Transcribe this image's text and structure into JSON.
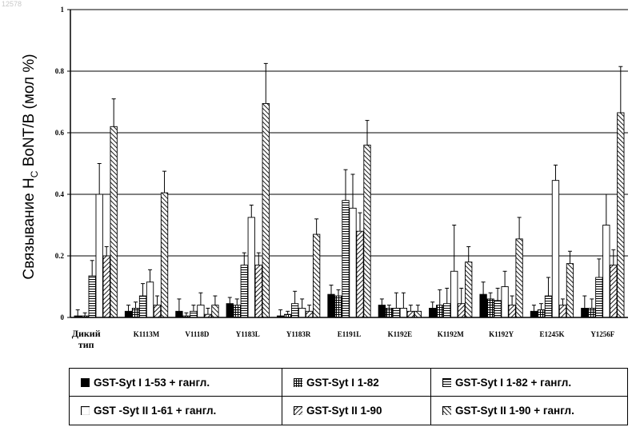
{
  "page": {
    "corner_label": "12578"
  },
  "chart_data": {
    "type": "bar",
    "title": "",
    "ylabel": "Связывание Hᴄ BoNT/B (мол %)",
    "ylabel_main": "Связывание H",
    "ylabel_sub": "C",
    "ylabel_rest": " BoNT/B (мол %)",
    "ylim": [
      0,
      1
    ],
    "yticks": [
      "0",
      "0.2",
      "0.4",
      "0.6",
      "0.8",
      "1"
    ],
    "grid": true,
    "categories": [
      "Дикий тип",
      "K1113M",
      "V1118D",
      "Y1183L",
      "Y1183R",
      "E1191L",
      "K1192E",
      "K1192M",
      "K1192Y",
      "E1245K",
      "Y1256F"
    ],
    "category_lines": [
      [
        "Дикий",
        "тип"
      ],
      [
        "K1113M"
      ],
      [
        "V1118D"
      ],
      [
        "Y1183L"
      ],
      [
        "Y1183R"
      ],
      [
        "E1191L"
      ],
      [
        "K1192E"
      ],
      [
        "K1192M"
      ],
      [
        "K1192Y"
      ],
      [
        "E1245K"
      ],
      [
        "Y1256F"
      ]
    ],
    "series": [
      {
        "name": "GST-Syt I 1-53 + гангл.",
        "pattern": "solid",
        "values": [
          0.005,
          0.02,
          0.02,
          0.045,
          0.005,
          0.075,
          0.04,
          0.03,
          0.075,
          0.02,
          0.03
        ],
        "errors": [
          0.02,
          0.02,
          0.04,
          0.02,
          0.02,
          0.03,
          0.02,
          0.02,
          0.04,
          0.02,
          0.04
        ]
      },
      {
        "name": "GST-Syt I 1-82",
        "pattern": "grid",
        "values": [
          0.005,
          0.03,
          0.005,
          0.04,
          0.01,
          0.07,
          0.03,
          0.04,
          0.06,
          0.025,
          0.03
        ],
        "errors": [
          0.01,
          0.02,
          0.01,
          0.02,
          0.01,
          0.02,
          0.01,
          0.05,
          0.02,
          0.02,
          0.03
        ]
      },
      {
        "name": "GST-Syt I 1-82 + гангл.",
        "pattern": "hlines",
        "values": [
          0.135,
          0.07,
          0.02,
          0.17,
          0.045,
          0.38,
          0.03,
          0.045,
          0.055,
          0.07,
          0.13
        ],
        "errors": [
          0.05,
          0.04,
          0.02,
          0.04,
          0.04,
          0.1,
          0.05,
          0.05,
          0.04,
          0.06,
          0.06
        ]
      },
      {
        "name": "GST -Syt II 1-61 + гангл.",
        "pattern": "empty",
        "values": [
          0.4,
          0.115,
          0.04,
          0.325,
          0.03,
          0.355,
          0.03,
          0.15,
          0.1,
          0.445,
          0.3
        ],
        "errors": [
          0.1,
          0.04,
          0.04,
          0.04,
          0.03,
          0.11,
          0.05,
          0.15,
          0.05,
          0.05,
          0.1
        ]
      },
      {
        "name": "GST-Syt II 1-90",
        "pattern": "diag",
        "values": [
          0.2,
          0.04,
          0.01,
          0.17,
          0.02,
          0.28,
          0.02,
          0.045,
          0.04,
          0.04,
          0.17
        ],
        "errors": [
          0.03,
          0.03,
          0.02,
          0.04,
          0.02,
          0.06,
          0.02,
          0.05,
          0.03,
          0.02,
          0.05
        ]
      },
      {
        "name": "GST-Syt II 1-90 + гангл.",
        "pattern": "backdiag",
        "values": [
          0.62,
          0.405,
          0.04,
          0.695,
          0.27,
          0.56,
          0.02,
          0.18,
          0.255,
          0.175,
          0.665
        ],
        "errors": [
          0.09,
          0.07,
          0.03,
          0.13,
          0.05,
          0.08,
          0.02,
          0.05,
          0.07,
          0.04,
          0.15
        ]
      }
    ],
    "legend_placement": "bottom"
  }
}
